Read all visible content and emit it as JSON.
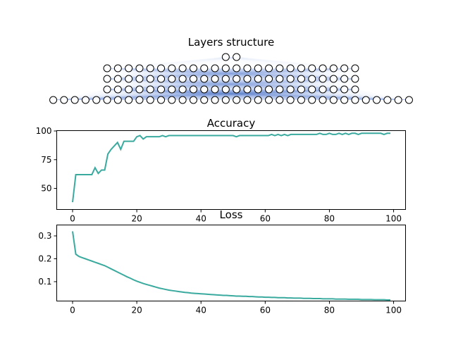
{
  "chart_data": [
    {
      "type": "diagram",
      "title": "Layers structure",
      "layers": [
        34,
        24,
        24,
        24,
        2
      ],
      "node_color": "#ffffff",
      "node_edge_color": "#000000",
      "edge_color": "#1f77b4"
    },
    {
      "type": "line",
      "title": "Accuracy",
      "xlim": [
        0,
        99
      ],
      "ylim": [
        35,
        100
      ],
      "xticks": [
        0,
        20,
        40,
        60,
        80,
        100
      ],
      "yticks": [
        50,
        75,
        100
      ],
      "color": "#3aaa9f",
      "series": [
        {
          "x": [
            0,
            1,
            2,
            3,
            4,
            5,
            6,
            7,
            8,
            9,
            10,
            11,
            12,
            13,
            14,
            15,
            16,
            17,
            18,
            19,
            20,
            21,
            22,
            23,
            24,
            25,
            26,
            27,
            28,
            29,
            30,
            31,
            32,
            33,
            34,
            35,
            36,
            37,
            38,
            39,
            40,
            41,
            42,
            43,
            44,
            45,
            46,
            47,
            48,
            49,
            50,
            51,
            52,
            53,
            54,
            55,
            56,
            57,
            58,
            59,
            60,
            61,
            62,
            63,
            64,
            65,
            66,
            67,
            68,
            69,
            70,
            71,
            72,
            73,
            74,
            75,
            76,
            77,
            78,
            79,
            80,
            81,
            82,
            83,
            84,
            85,
            86,
            87,
            88,
            89,
            90,
            91,
            92,
            93,
            94,
            95,
            96,
            97,
            98,
            99
          ],
          "values": [
            38,
            62,
            62,
            62,
            62,
            62,
            62,
            68,
            63,
            66,
            66,
            80,
            84,
            87,
            90,
            84,
            91,
            91,
            91,
            91,
            95,
            96,
            93,
            95,
            95,
            95,
            95,
            95,
            96,
            95,
            96,
            96,
            96,
            96,
            96,
            96,
            96,
            96,
            96,
            96,
            96,
            96,
            96,
            96,
            96,
            96,
            96,
            96,
            96,
            96,
            96,
            95,
            96,
            96,
            96,
            96,
            96,
            96,
            96,
            96,
            96,
            96,
            97,
            96,
            97,
            96,
            97,
            96,
            97,
            97,
            97,
            97,
            97,
            97,
            97,
            97,
            97,
            98,
            97,
            97,
            98,
            97,
            97,
            98,
            97,
            98,
            97,
            98,
            98,
            97,
            98,
            98,
            98,
            98,
            98,
            98,
            98,
            97,
            98,
            98
          ]
        }
      ]
    },
    {
      "type": "line",
      "title": "Loss",
      "xlim": [
        0,
        99
      ],
      "ylim": [
        0.02,
        0.34
      ],
      "xticks": [
        0,
        20,
        40,
        60,
        80,
        100
      ],
      "yticks": [
        0.1,
        0.2,
        0.3
      ],
      "color": "#3aaa9f",
      "series": [
        {
          "x": [
            0,
            1,
            2,
            3,
            4,
            5,
            6,
            7,
            8,
            9,
            10,
            11,
            12,
            13,
            14,
            15,
            16,
            17,
            18,
            19,
            20,
            21,
            22,
            23,
            24,
            25,
            26,
            27,
            28,
            29,
            30,
            31,
            32,
            33,
            34,
            35,
            36,
            37,
            38,
            39,
            40,
            41,
            42,
            43,
            44,
            45,
            46,
            47,
            48,
            49,
            50,
            51,
            52,
            53,
            54,
            55,
            56,
            57,
            58,
            59,
            60,
            61,
            62,
            63,
            64,
            65,
            66,
            67,
            68,
            69,
            70,
            71,
            72,
            73,
            74,
            75,
            76,
            77,
            78,
            79,
            80,
            81,
            82,
            83,
            84,
            85,
            86,
            87,
            88,
            89,
            90,
            91,
            92,
            93,
            94,
            95,
            96,
            97,
            98,
            99
          ],
          "values": [
            0.32,
            0.22,
            0.21,
            0.205,
            0.2,
            0.195,
            0.19,
            0.185,
            0.18,
            0.175,
            0.17,
            0.163,
            0.156,
            0.149,
            0.142,
            0.135,
            0.128,
            0.121,
            0.115,
            0.108,
            0.102,
            0.097,
            0.092,
            0.088,
            0.084,
            0.08,
            0.076,
            0.072,
            0.069,
            0.066,
            0.063,
            0.061,
            0.059,
            0.057,
            0.055,
            0.053,
            0.052,
            0.05,
            0.049,
            0.048,
            0.047,
            0.046,
            0.045,
            0.044,
            0.043,
            0.042,
            0.041,
            0.04,
            0.04,
            0.039,
            0.038,
            0.037,
            0.037,
            0.036,
            0.036,
            0.035,
            0.035,
            0.034,
            0.033,
            0.033,
            0.032,
            0.032,
            0.031,
            0.031,
            0.03,
            0.03,
            0.03,
            0.029,
            0.029,
            0.028,
            0.028,
            0.028,
            0.027,
            0.027,
            0.027,
            0.026,
            0.026,
            0.026,
            0.025,
            0.025,
            0.025,
            0.025,
            0.024,
            0.024,
            0.024,
            0.024,
            0.023,
            0.023,
            0.023,
            0.023,
            0.022,
            0.022,
            0.022,
            0.022,
            0.021,
            0.021,
            0.021,
            0.021,
            0.02,
            0.02
          ]
        }
      ]
    }
  ]
}
